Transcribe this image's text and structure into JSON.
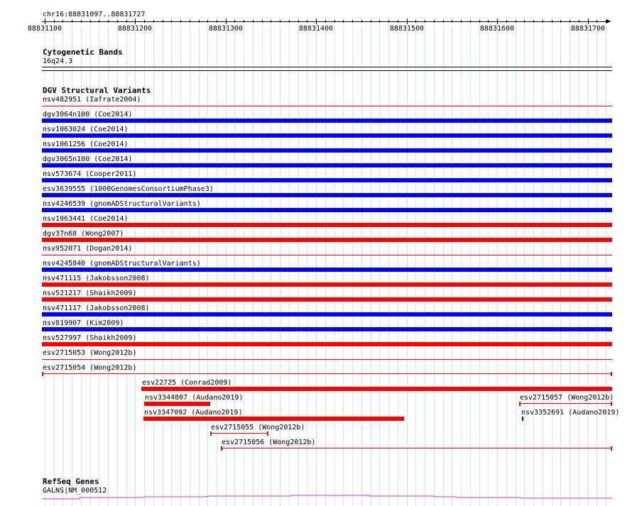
{
  "ruler": {
    "location": "chr16:88831097..88831727",
    "ticks": [
      "88831100",
      "88831200",
      "88831300",
      "88831400",
      "88831500",
      "88831600",
      "88831700"
    ]
  },
  "cytoband": {
    "title": "Cytogenetic Bands",
    "band": "16q24.3"
  },
  "dgv": {
    "title": "DGV Structural Variants",
    "colors": {
      "loss": "#ff0000",
      "gain": "#0000ff"
    },
    "rows": [
      {
        "label": "nsv482951 (Iafrate2004)",
        "type": "loss",
        "style": "thin"
      },
      {
        "label": "dgv3064n100 (Coe2014)",
        "type": "gain",
        "style": "thick"
      },
      {
        "label": "nsv1063024 (Coe2014)",
        "type": "gain",
        "style": "thick"
      },
      {
        "label": "nsv1061256 (Coe2014)",
        "type": "gain",
        "style": "thick"
      },
      {
        "label": "dgv3065n100 (Coe2014)",
        "type": "gain",
        "style": "thick"
      },
      {
        "label": "nsv573674 (Cooper2011)",
        "type": "gain",
        "style": "thick"
      },
      {
        "label": "esv3639555 (1000GenomesConsortiumPhase3)",
        "type": "gain",
        "style": "thick"
      },
      {
        "label": "nsv4246539 (gnomADStructuralVariants)",
        "type": "gain",
        "style": "thick"
      },
      {
        "label": "nsv1063441 (Coe2014)",
        "type": "loss",
        "style": "thick"
      },
      {
        "label": "dgv37n68 (Wong2007)",
        "type": "loss",
        "style": "thick"
      },
      {
        "label": "nsv952071 (Dogan2014)",
        "type": "loss",
        "style": "thin"
      },
      {
        "label": "nsv4245840 (gnomADStructuralVariants)",
        "type": "gain",
        "style": "thick"
      },
      {
        "label": "nsv471115 (Jakobsson2008)",
        "type": "loss",
        "style": "thick"
      },
      {
        "label": "nsv521217 (Shaikh2009)",
        "type": "loss",
        "style": "thick"
      },
      {
        "label": "nsv471117 (Jakobsson2008)",
        "type": "gain",
        "style": "thick"
      },
      {
        "label": "nsv819907 (Kim2009)",
        "type": "gain",
        "style": "thick"
      },
      {
        "label": "nsv527997 (Shaikh2009)",
        "type": "loss",
        "style": "thick"
      },
      {
        "label": "esv2715053 (Wong2012b)",
        "type": "loss",
        "style": "thin"
      }
    ],
    "partial": [
      {
        "label": "esv2715054 (Wong2012b)",
        "type": "loss",
        "style": "bracket",
        "start": 88831097,
        "end": 88831727
      },
      {
        "label": "esv22725 (Conrad2009)",
        "type": "loss",
        "style": "thick",
        "start": 88831207,
        "end": 88831727
      },
      {
        "label": "nsv3344807 (Audano2019)",
        "type": "loss",
        "style": "thick",
        "start": 88831210,
        "end": 88831283
      },
      {
        "label": "esv2715057 (Wong2012b)",
        "type": "loss",
        "style": "bracket",
        "start": 88831624,
        "end": 88831727
      },
      {
        "label": "nsv3347092 (Audano2019)",
        "type": "loss",
        "style": "thick",
        "start": 88831209,
        "end": 88831497
      },
      {
        "label": "nsv3352691 (Audano2019)",
        "type": "gain",
        "style": "tiny",
        "start": 88831627,
        "end": 88831628
      },
      {
        "label": "esv2715055 (Wong2012b)",
        "type": "loss",
        "style": "bracket",
        "start": 88831283,
        "end": 88831347
      },
      {
        "label": "esv2715056 (Wong2012b)",
        "type": "loss",
        "style": "bracket",
        "start": 88831295,
        "end": 88831727
      }
    ]
  },
  "refseq": {
    "title": "RefSeq Genes",
    "gene": "GALNS|NM_000512",
    "color": "#cc33cc"
  }
}
